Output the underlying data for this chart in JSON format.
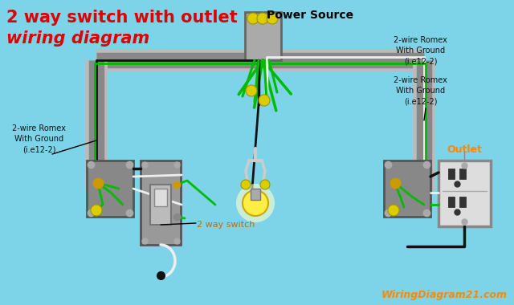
{
  "bg_color": "#7dd4e8",
  "title_line1": "2 way switch with outlet",
  "title_line2": "wiring diagram",
  "title_color": "#dd0000",
  "title_fontsize": 15,
  "power_source_label": "Power Source",
  "label_2way_switch": "2 way switch",
  "label_2way_switch_color": "#cc6600",
  "label_outlet": "Outlet",
  "label_outlet_color": "#ff8800",
  "label_romex_left": "2-wire Romex\nWith Ground\n(i.e12-2)",
  "label_romex_right1": "2-wire Romex\nWith Ground\n(i.e12-2)",
  "label_romex_right2": "2-wire Romex\nWith Ground\n(i.e12-2)",
  "watermark": "WiringDiagram21.com",
  "watermark_color": "#ff8800",
  "wire_black": "#111111",
  "wire_white": "#eeeeee",
  "wire_green": "#00bb00",
  "wire_gray": "#aaaaaa",
  "box_color": "#999999",
  "bulb_color": "#ffee44",
  "connector_color": "#ddcc00",
  "conduit_outer": "#bbbbbb",
  "conduit_inner": "#888888"
}
